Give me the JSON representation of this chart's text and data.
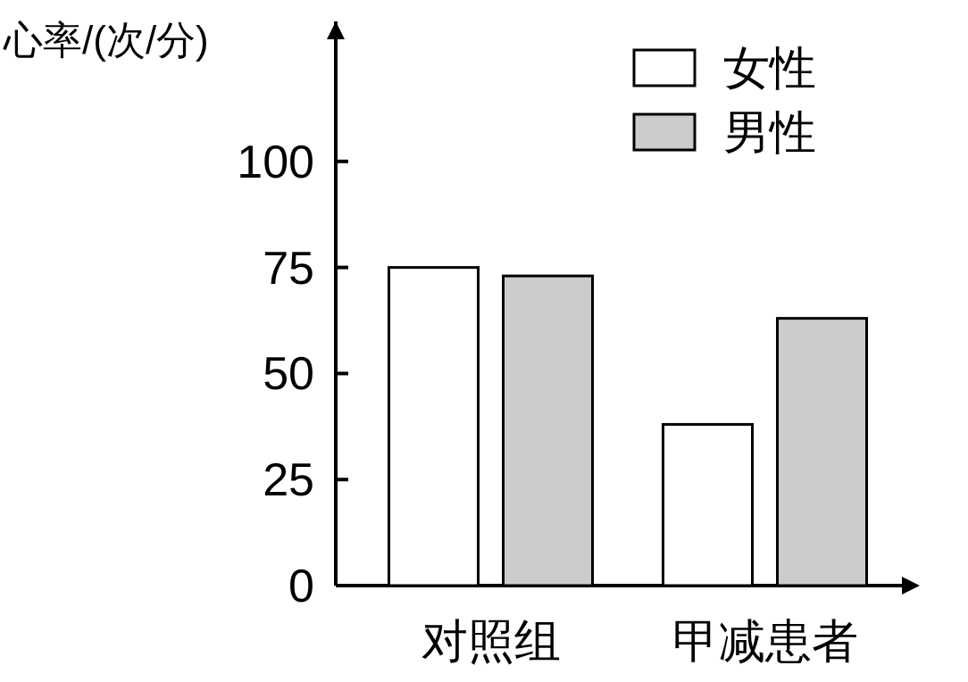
{
  "chart_data": {
    "type": "bar",
    "ylabel": "心率/(次/分)",
    "categories": [
      "对照组",
      "甲减患者"
    ],
    "series": [
      {
        "name": "女性",
        "color": "#ffffff",
        "values": [
          75,
          38
        ]
      },
      {
        "name": "男性",
        "color": "#cccccc",
        "values": [
          73,
          63
        ]
      }
    ],
    "ylim": [
      0,
      133
    ],
    "yticks": [
      0,
      25,
      50,
      75,
      100
    ],
    "grid": false,
    "legend": "top right"
  }
}
